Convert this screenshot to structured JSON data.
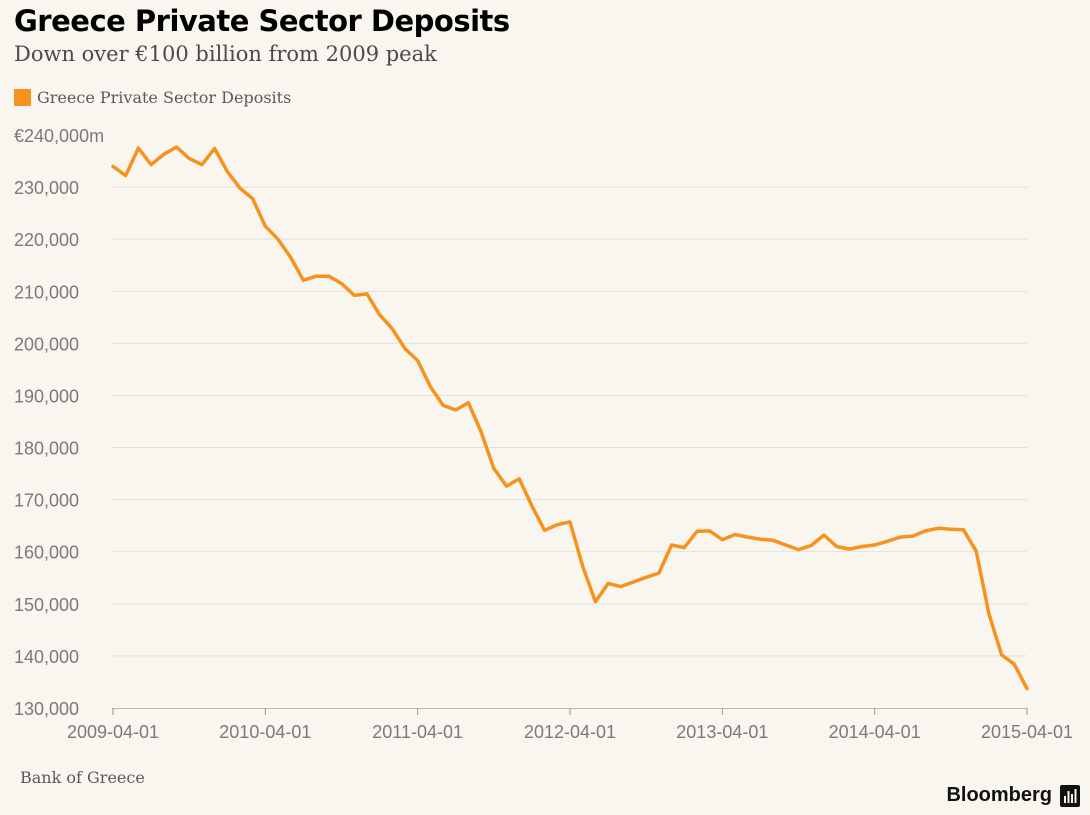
{
  "header": {
    "title": "Greece Private Sector Deposits",
    "subtitle": "Down over €100 billion from 2009 peak"
  },
  "legend": {
    "label": "Greece Private Sector Deposits"
  },
  "footer": {
    "source": "Bank of Greece",
    "brand": "Bloomberg"
  },
  "colors": {
    "series": "#f7921e",
    "gridline": "#e4e1da",
    "axis_text": "#7a7a7a",
    "background": "#f8f6ef"
  },
  "icons": {
    "brand_logo": "bloomberg-bar-chart-icon"
  },
  "chart_data": {
    "type": "line",
    "title": "Greece Private Sector Deposits",
    "subtitle": "Down over €100 billion from 2009 peak",
    "xlabel": "",
    "ylabel": "",
    "y_unit_label": "€240,000m",
    "ylim": [
      130000,
      240000
    ],
    "y_ticks": [
      130000,
      140000,
      150000,
      160000,
      170000,
      180000,
      190000,
      200000,
      210000,
      220000,
      230000,
      240000
    ],
    "y_tick_labels": [
      "130,000",
      "140,000",
      "150,000",
      "160,000",
      "170,000",
      "180,000",
      "190,000",
      "200,000",
      "210,000",
      "220,000",
      "230,000",
      "€240,000m"
    ],
    "x_ticks": [
      "2009-04-01",
      "2010-04-01",
      "2011-04-01",
      "2012-04-01",
      "2013-04-01",
      "2014-04-01",
      "2015-04-01"
    ],
    "x_start": "2009-04",
    "grid": true,
    "legend_position": "top-left",
    "series": [
      {
        "name": "Greece Private Sector Deposits",
        "frequency": "monthly",
        "values": [
          234000,
          232200,
          237500,
          234300,
          236300,
          237700,
          235500,
          234300,
          237400,
          233000,
          229800,
          227800,
          222500,
          220000,
          216500,
          212100,
          212900,
          212900,
          211500,
          209200,
          209500,
          205500,
          202800,
          199000,
          196700,
          191700,
          188100,
          187200,
          188600,
          183000,
          176000,
          172600,
          174000,
          168800,
          164100,
          165200,
          165700,
          157200,
          150400,
          153900,
          153300,
          154200,
          155100,
          155900,
          161300,
          160800,
          163900,
          164000,
          162300,
          163300,
          162800,
          162400,
          162200,
          161300,
          160400,
          161200,
          163200,
          161000,
          160500,
          161000,
          161300,
          162000,
          162800,
          163000,
          164000,
          164500,
          164300,
          164200,
          160100,
          148100,
          140200,
          138400,
          133700
        ]
      }
    ]
  }
}
